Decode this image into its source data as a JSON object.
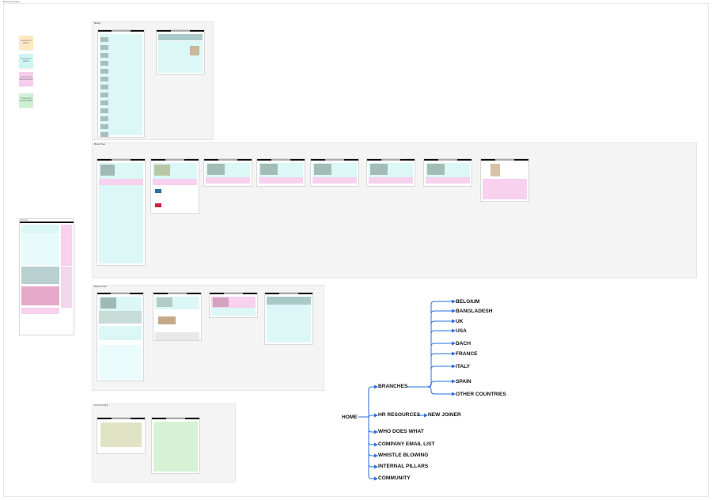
{
  "canvas_label": "Board Canvas",
  "legend": [
    {
      "text": "Content from Brands",
      "color": "#fde9bf"
    },
    {
      "text": "Content from Division",
      "color": "#cdf5f3"
    },
    {
      "text": "Content from Internal Services",
      "color": "#f7cdee"
    },
    {
      "text": "Content from Company Pillars",
      "color": "#cdf0d3"
    }
  ],
  "sections": {
    "news": "News",
    "branches": "Branches",
    "resources": "Resources",
    "home": "Home",
    "community": "Community"
  },
  "colors": {
    "cyan": "#d9f7f6",
    "pink": "#f9d2ef",
    "green": "#d6f2d6",
    "olive": "#dfe3c4",
    "connector": "#2a6fe0"
  },
  "sitemap": {
    "root": "HOME",
    "branches": "BRANCHES",
    "countries": [
      "BELGIUM",
      "BANGLADESH",
      "UK",
      "USA",
      "DACH",
      "FRANCE",
      "ITALY",
      "SPAIN",
      "OTHER COUNTRIES"
    ],
    "hr_resources": "HR RESOURCES",
    "new_joiner": "NEW JOINER",
    "others": [
      "WHO DOES WHAT",
      "COMPANY EMAIL LIST",
      "WHISTLE BLOWING",
      "INTERNAL PILLARS",
      "COMMUNITY"
    ]
  }
}
